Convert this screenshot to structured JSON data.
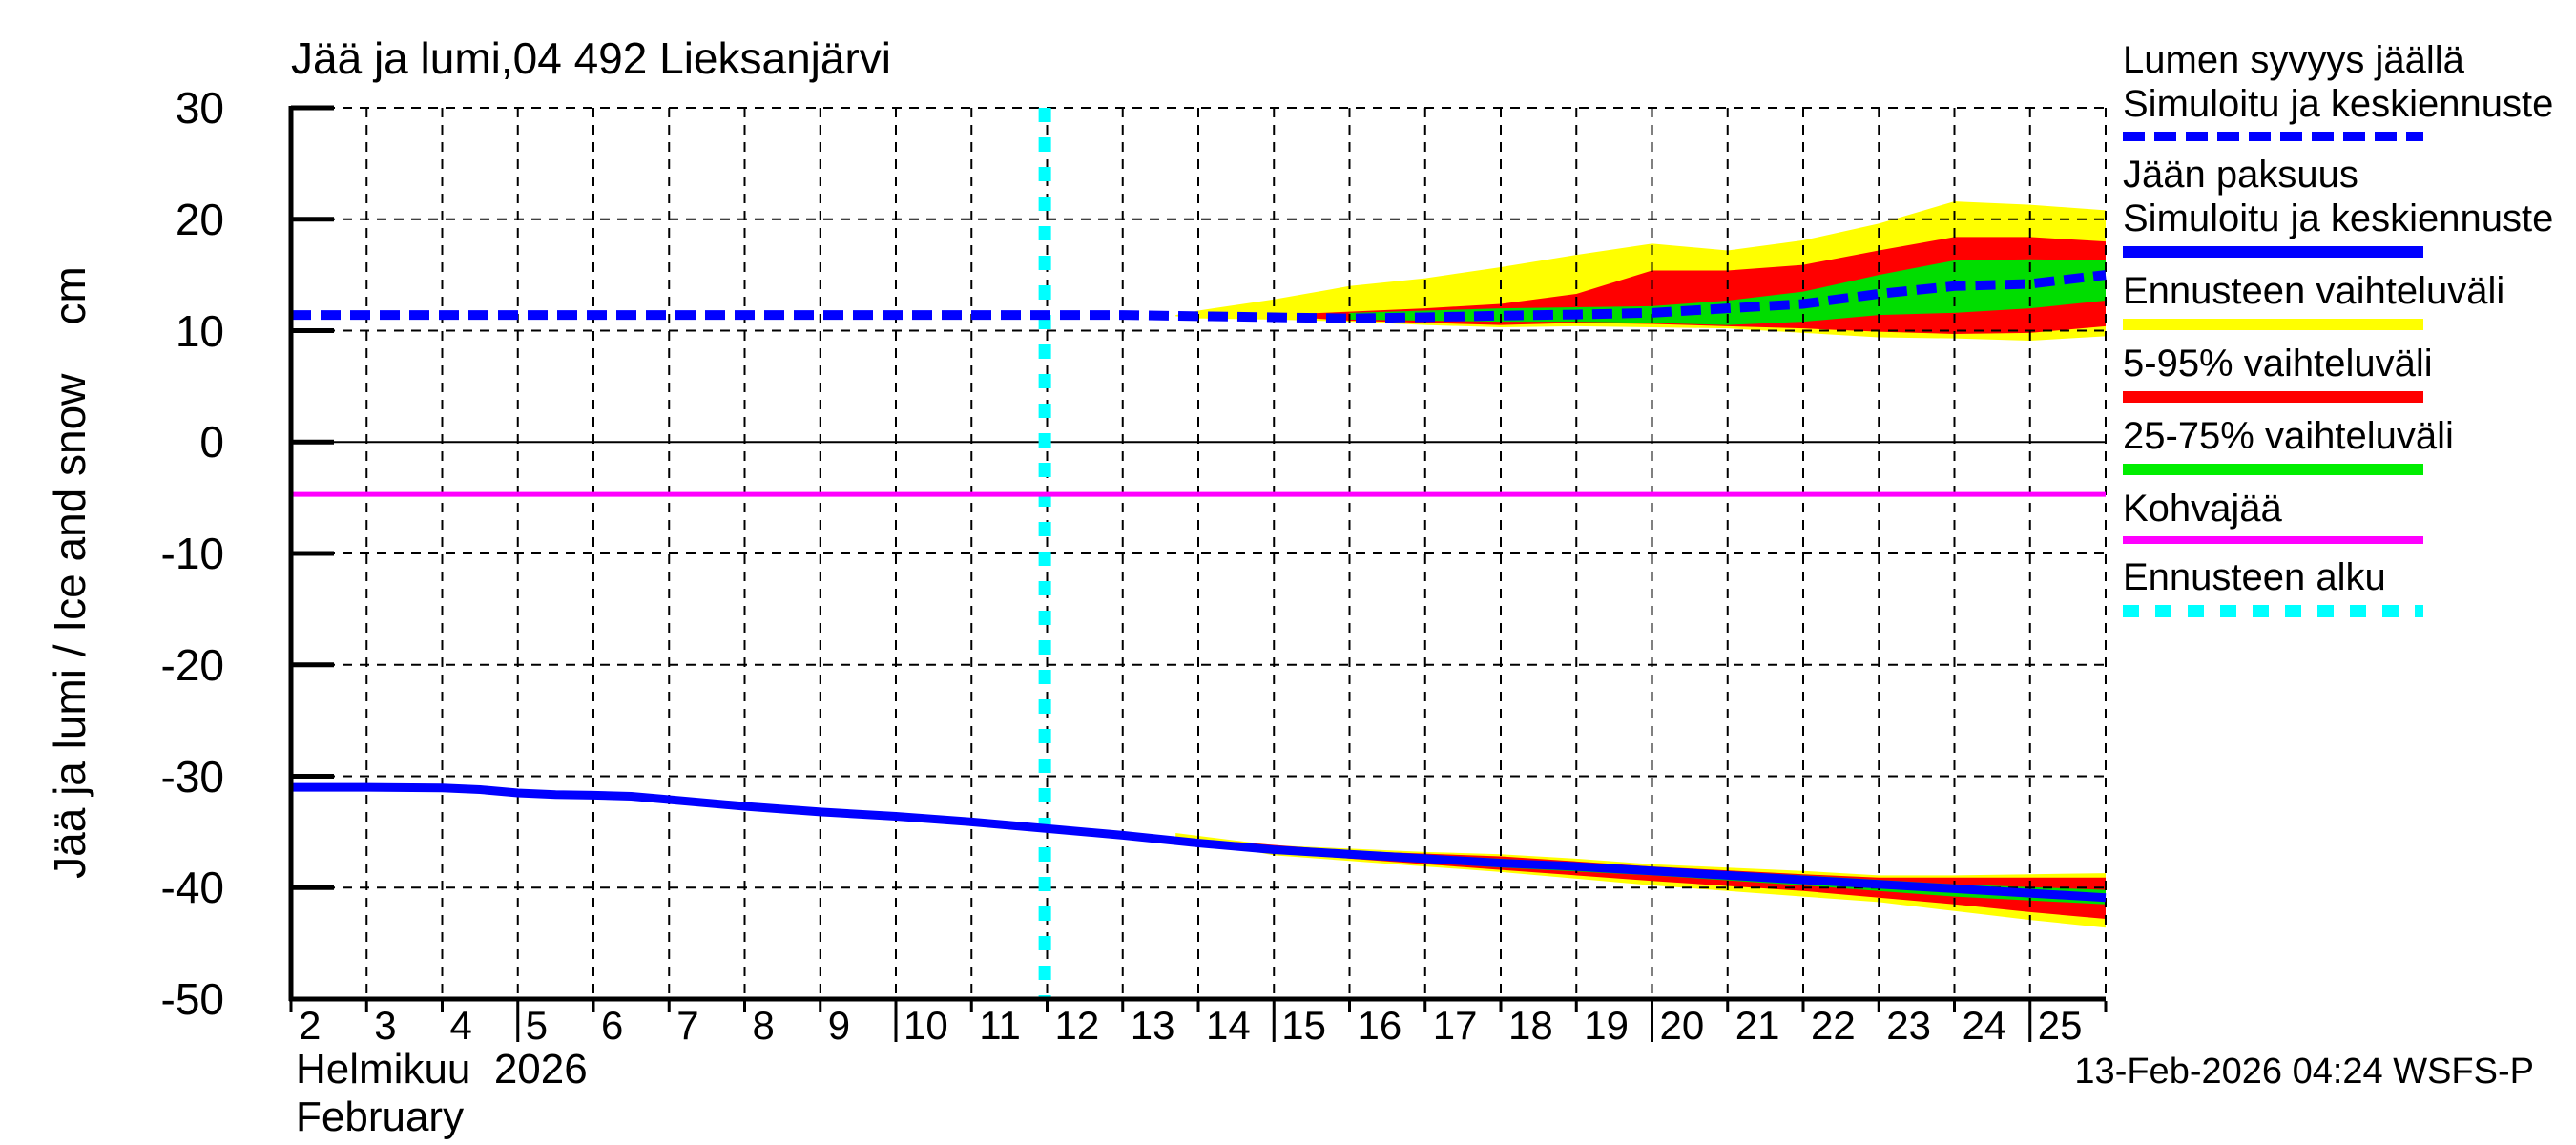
{
  "title": "Jää ja lumi,04 492 Lieksanjärvi",
  "y_axis": {
    "label_rotated": "Jää ja lumi / Ice and snow",
    "unit": "cm",
    "ticks": [
      30,
      20,
      10,
      0,
      -10,
      -20,
      -30,
      -40,
      -50
    ]
  },
  "x_axis": {
    "day_labels": [
      2,
      3,
      4,
      5,
      6,
      7,
      8,
      9,
      10,
      11,
      12,
      13,
      14,
      15,
      16,
      17,
      18,
      19,
      20,
      21,
      22,
      23,
      24,
      25
    ],
    "long_tick_days": [
      5,
      10,
      15,
      20,
      25
    ],
    "month_label_fi": "Helmikuu  2026",
    "month_label_en": "February"
  },
  "footer": {
    "timestamp": "13-Feb-2026 04:24 WSFS-P"
  },
  "colors": {
    "blue": "#0000ff",
    "yellow": "#ffff00",
    "red": "#ff0000",
    "green": "#00dd00",
    "magenta": "#ff00ff",
    "cyan": "#00ffff",
    "black": "#000000"
  },
  "legend": [
    {
      "lines": [
        "Lumen syvyys jäällä",
        "Simuloitu ja keskiennuste"
      ],
      "sample": "blue-dashed"
    },
    {
      "lines": [
        "Jään paksuus",
        "Simuloitu ja keskiennuste"
      ],
      "sample": "blue-solid"
    },
    {
      "lines": [
        "Ennusteen vaihteluväli"
      ],
      "sample": "yellow-solid"
    },
    {
      "lines": [
        "5-95% vaihteluväli"
      ],
      "sample": "red-solid"
    },
    {
      "lines": [
        "25-75% vaihteluväli"
      ],
      "sample": "green-solid"
    },
    {
      "lines": [
        "Kohvajää"
      ],
      "sample": "magenta-solid"
    },
    {
      "lines": [
        "Ennusteen alku"
      ],
      "sample": "cyan-dashed"
    }
  ],
  "chart_data": {
    "type": "line",
    "title": "Jää ja lumi,04 492 Lieksanjärvi",
    "xlabel": "Helmikuu 2026 / February (day of month)",
    "ylabel": "Jää ja lumi / Ice and snow (cm)",
    "xlim": [
      2,
      26
    ],
    "ylim": [
      -50,
      30
    ],
    "grid": true,
    "forecast_start_day": 12,
    "kohvajaa_level_cm": -4.7,
    "series": [
      {
        "name": "snow_range_minmax",
        "legend": "Ennusteen vaihteluväli",
        "kind": "band",
        "color": "#ffff00",
        "x": [
          13.7,
          14,
          15,
          16,
          17,
          18,
          19,
          20,
          21,
          22,
          23,
          24,
          25,
          26
        ],
        "top": [
          11.4,
          11.8,
          12.8,
          14.0,
          14.7,
          15.7,
          16.8,
          17.8,
          17.2,
          18.1,
          19.6,
          21.6,
          21.3,
          20.8
        ],
        "bottom": [
          11.3,
          11.1,
          11.0,
          10.8,
          10.5,
          10.3,
          10.4,
          10.3,
          10.2,
          9.8,
          9.4,
          9.3,
          9.1,
          9.5
        ]
      },
      {
        "name": "snow_5_95",
        "legend": "5-95% vaihteluväli",
        "kind": "band",
        "color": "#ff0000",
        "x": [
          15.3,
          16,
          17,
          18,
          19,
          20,
          21,
          22,
          23,
          24,
          25,
          26
        ],
        "top": [
          11.5,
          11.7,
          12.0,
          12.4,
          13.3,
          15.4,
          15.4,
          15.9,
          17.2,
          18.4,
          18.4,
          18.0
        ],
        "bottom": [
          11.2,
          10.9,
          10.7,
          10.5,
          10.7,
          10.6,
          10.4,
          10.2,
          9.9,
          9.7,
          9.8,
          10.4
        ]
      },
      {
        "name": "snow_25_75",
        "legend": "25-75% vaihteluväli",
        "kind": "band",
        "color": "#00dd00",
        "x": [
          16,
          17,
          18,
          19,
          20,
          21,
          22,
          23,
          24,
          25,
          26
        ],
        "top": [
          11.6,
          11.8,
          12.0,
          12.1,
          12.2,
          12.7,
          13.5,
          15.0,
          16.3,
          16.4,
          16.3
        ],
        "bottom": [
          11.0,
          10.9,
          10.8,
          10.8,
          10.7,
          10.5,
          10.8,
          11.4,
          11.6,
          12.0,
          12.7
        ]
      },
      {
        "name": "snow_depth_mean",
        "legend": "Lumen syvyys jäällä - Simuloitu ja keskiennuste",
        "kind": "line",
        "style": "dashed",
        "color": "#0000ff",
        "x": [
          2,
          3,
          4,
          5,
          6,
          7,
          8,
          9,
          10,
          11,
          12,
          13,
          14,
          15,
          16,
          17,
          18,
          19,
          20,
          21,
          22,
          23,
          24,
          25,
          26
        ],
        "y": [
          11.4,
          11.4,
          11.4,
          11.4,
          11.4,
          11.4,
          11.4,
          11.4,
          11.4,
          11.4,
          11.4,
          11.4,
          11.3,
          11.2,
          11.1,
          11.2,
          11.35,
          11.45,
          11.6,
          12.0,
          12.4,
          13.3,
          14.0,
          14.2,
          15.0
        ]
      },
      {
        "name": "ice_range_minmax",
        "legend": "Ennusteen vaihteluväli",
        "kind": "band",
        "color": "#ffff00",
        "x": [
          13.7,
          15,
          16,
          17,
          18,
          19,
          20,
          21,
          22,
          23,
          24,
          25,
          26
        ],
        "top": [
          -35.1,
          -36.2,
          -36.5,
          -36.8,
          -37.0,
          -37.4,
          -37.9,
          -38.2,
          -38.5,
          -38.9,
          -38.9,
          -38.8,
          -38.7
        ],
        "bottom": [
          -35.5,
          -37.1,
          -37.6,
          -38.1,
          -38.6,
          -39.2,
          -39.8,
          -40.3,
          -40.8,
          -41.3,
          -42.1,
          -42.9,
          -43.6
        ]
      },
      {
        "name": "ice_5_95",
        "legend": "5-95% vaihteluväli",
        "kind": "band",
        "color": "#ff0000",
        "x": [
          14.5,
          16,
          18,
          20,
          22,
          23,
          24,
          25,
          26
        ],
        "top": [
          -35.9,
          -36.7,
          -37.2,
          -38.1,
          -38.8,
          -39.1,
          -39.1,
          -39.1,
          -39.1
        ],
        "bottom": [
          -36.3,
          -37.4,
          -38.4,
          -39.4,
          -40.3,
          -40.9,
          -41.5,
          -42.2,
          -42.8
        ]
      },
      {
        "name": "ice_25_75",
        "legend": "25-75% vaihteluväli",
        "kind": "band",
        "color": "#00dd00",
        "x": [
          16,
          18,
          20,
          22,
          24,
          26
        ],
        "top": [
          -36.7,
          -37.4,
          -38.2,
          -38.9,
          -39.7,
          -40.2
        ],
        "bottom": [
          -37.3,
          -38.2,
          -38.9,
          -39.8,
          -40.8,
          -41.5
        ]
      },
      {
        "name": "ice_thickness_mean",
        "legend": "Jään paksuus - Simuloitu ja keskiennuste",
        "kind": "line",
        "style": "solid",
        "color": "#0000ff",
        "x": [
          2,
          3,
          4,
          4.5,
          5,
          5.5,
          6,
          6.5,
          7,
          8,
          9,
          10,
          11,
          12,
          13,
          14,
          15,
          16,
          17,
          18,
          19,
          20,
          21,
          22,
          23,
          24,
          25,
          26
        ],
        "y": [
          -31.0,
          -31.0,
          -31.05,
          -31.2,
          -31.5,
          -31.65,
          -31.7,
          -31.8,
          -32.1,
          -32.7,
          -33.2,
          -33.6,
          -34.1,
          -34.7,
          -35.3,
          -36.0,
          -36.6,
          -37.0,
          -37.4,
          -37.8,
          -38.1,
          -38.5,
          -38.9,
          -39.3,
          -39.7,
          -40.1,
          -40.5,
          -40.9
        ]
      },
      {
        "name": "kohvajaa",
        "legend": "Kohvajää",
        "kind": "hline",
        "color": "#ff00ff",
        "y": -4.7
      },
      {
        "name": "forecast_start",
        "legend": "Ennusteen alku",
        "kind": "vline",
        "style": "dashed",
        "color": "#00ffff",
        "x": 11.97
      }
    ]
  }
}
